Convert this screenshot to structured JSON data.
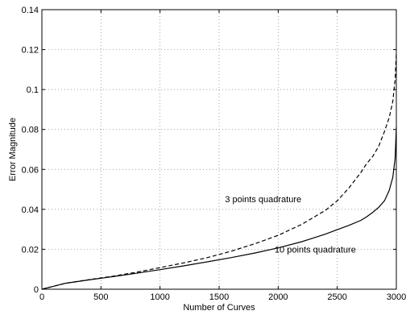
{
  "chart_data": {
    "type": "line",
    "title": "",
    "xlabel": "Number of Curves",
    "ylabel": "Error Magnitude",
    "xlim": [
      0,
      3000
    ],
    "ylim": [
      0,
      0.14
    ],
    "xticks": [
      0,
      500,
      1000,
      1500,
      2000,
      2500,
      3000
    ],
    "xtick_labels": [
      "0",
      "500",
      "1000",
      "1500",
      "2000",
      "2500",
      "3000"
    ],
    "yticks": [
      0,
      0.02,
      0.04,
      0.06,
      0.08,
      0.1,
      0.12,
      0.14
    ],
    "ytick_labels": [
      "0",
      "0.02",
      "0.04",
      "0.06",
      "0.08",
      "0.1",
      "0.12",
      "0.14"
    ],
    "grid": true,
    "legend": "none",
    "series": [
      {
        "key": "three_point",
        "style": "dashed",
        "color": "#000000",
        "x": [
          0,
          100,
          200,
          400,
          600,
          800,
          1000,
          1200,
          1400,
          1600,
          1800,
          2000,
          2200,
          2400,
          2500,
          2600,
          2700,
          2750,
          2800,
          2850,
          2900,
          2940,
          2970,
          2990,
          3000
        ],
        "y": [
          0,
          0.0015,
          0.003,
          0.0048,
          0.0065,
          0.0085,
          0.0108,
          0.0132,
          0.0158,
          0.019,
          0.0227,
          0.027,
          0.0325,
          0.0395,
          0.0443,
          0.0508,
          0.0585,
          0.063,
          0.0665,
          0.0715,
          0.079,
          0.086,
          0.094,
          0.105,
          0.118
        ]
      },
      {
        "key": "ten_point",
        "style": "solid",
        "color": "#000000",
        "x": [
          0,
          100,
          200,
          400,
          600,
          800,
          1000,
          1200,
          1400,
          1600,
          1800,
          2000,
          2200,
          2400,
          2500,
          2600,
          2700,
          2750,
          2800,
          2850,
          2900,
          2940,
          2970,
          2990,
          3000
        ],
        "y": [
          0,
          0.0015,
          0.003,
          0.0047,
          0.0063,
          0.008,
          0.0098,
          0.0117,
          0.0137,
          0.0158,
          0.0181,
          0.0207,
          0.0238,
          0.0276,
          0.0298,
          0.032,
          0.0345,
          0.0363,
          0.0385,
          0.041,
          0.0443,
          0.0495,
          0.056,
          0.0655,
          0.081
        ]
      }
    ],
    "annotations": [
      {
        "text": "3 points quadrature",
        "x": 1550,
        "y": 0.0435
      },
      {
        "text": "10 points quadrature",
        "x": 1970,
        "y": 0.0183
      }
    ]
  }
}
